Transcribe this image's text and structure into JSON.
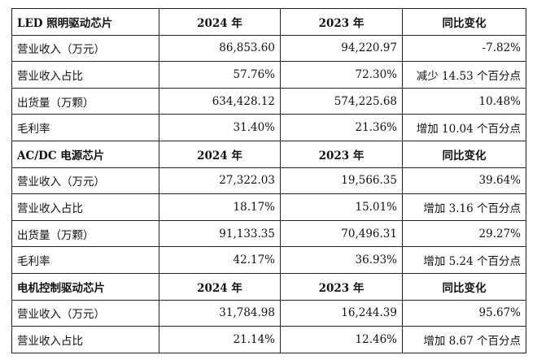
{
  "sections": [
    {
      "header": [
        "LED 照明驱动芯片",
        "2024 年",
        "2023 年",
        "同比变化"
      ],
      "rows": [
        [
          "营业收入（万元）",
          "86,853.60",
          "94,220.97",
          "-7.82%"
        ],
        [
          "营业收入占比",
          "57.76%",
          "72.30%",
          "减少 14.53 个百分点"
        ],
        [
          "出货量（万颗）",
          "634,428.12",
          "574,225.68",
          "10.48%"
        ],
        [
          "毛利率",
          "31.40%",
          "21.36%",
          "增加 10.04 个百分点"
        ]
      ]
    },
    {
      "header": [
        "AC/DC 电源芯片",
        "2024 年",
        "2023 年",
        "同比变化"
      ],
      "rows": [
        [
          "营业收入（万元）",
          "27,322.03",
          "19,566.35",
          "39.64%"
        ],
        [
          "营业收入占比",
          "18.17%",
          "15.01%",
          "增加 3.16 个百分点"
        ],
        [
          "出货量（万颗）",
          "91,133.35",
          "70,496.31",
          "29.27%"
        ],
        [
          "毛利率",
          "42.17%",
          "36.93%",
          "增加 5.24 个百分点"
        ]
      ]
    },
    {
      "header": [
        "电机控制驱动芯片",
        "2024 年",
        "2023 年",
        "同比变化"
      ],
      "rows": [
        [
          "营业收入（万元）",
          "31,784.98",
          "16,244.39",
          "95.67%"
        ],
        [
          "营业收入占比",
          "21.14%",
          "12.46%",
          "增加 8.67 个百分点"
        ]
      ]
    }
  ]
}
